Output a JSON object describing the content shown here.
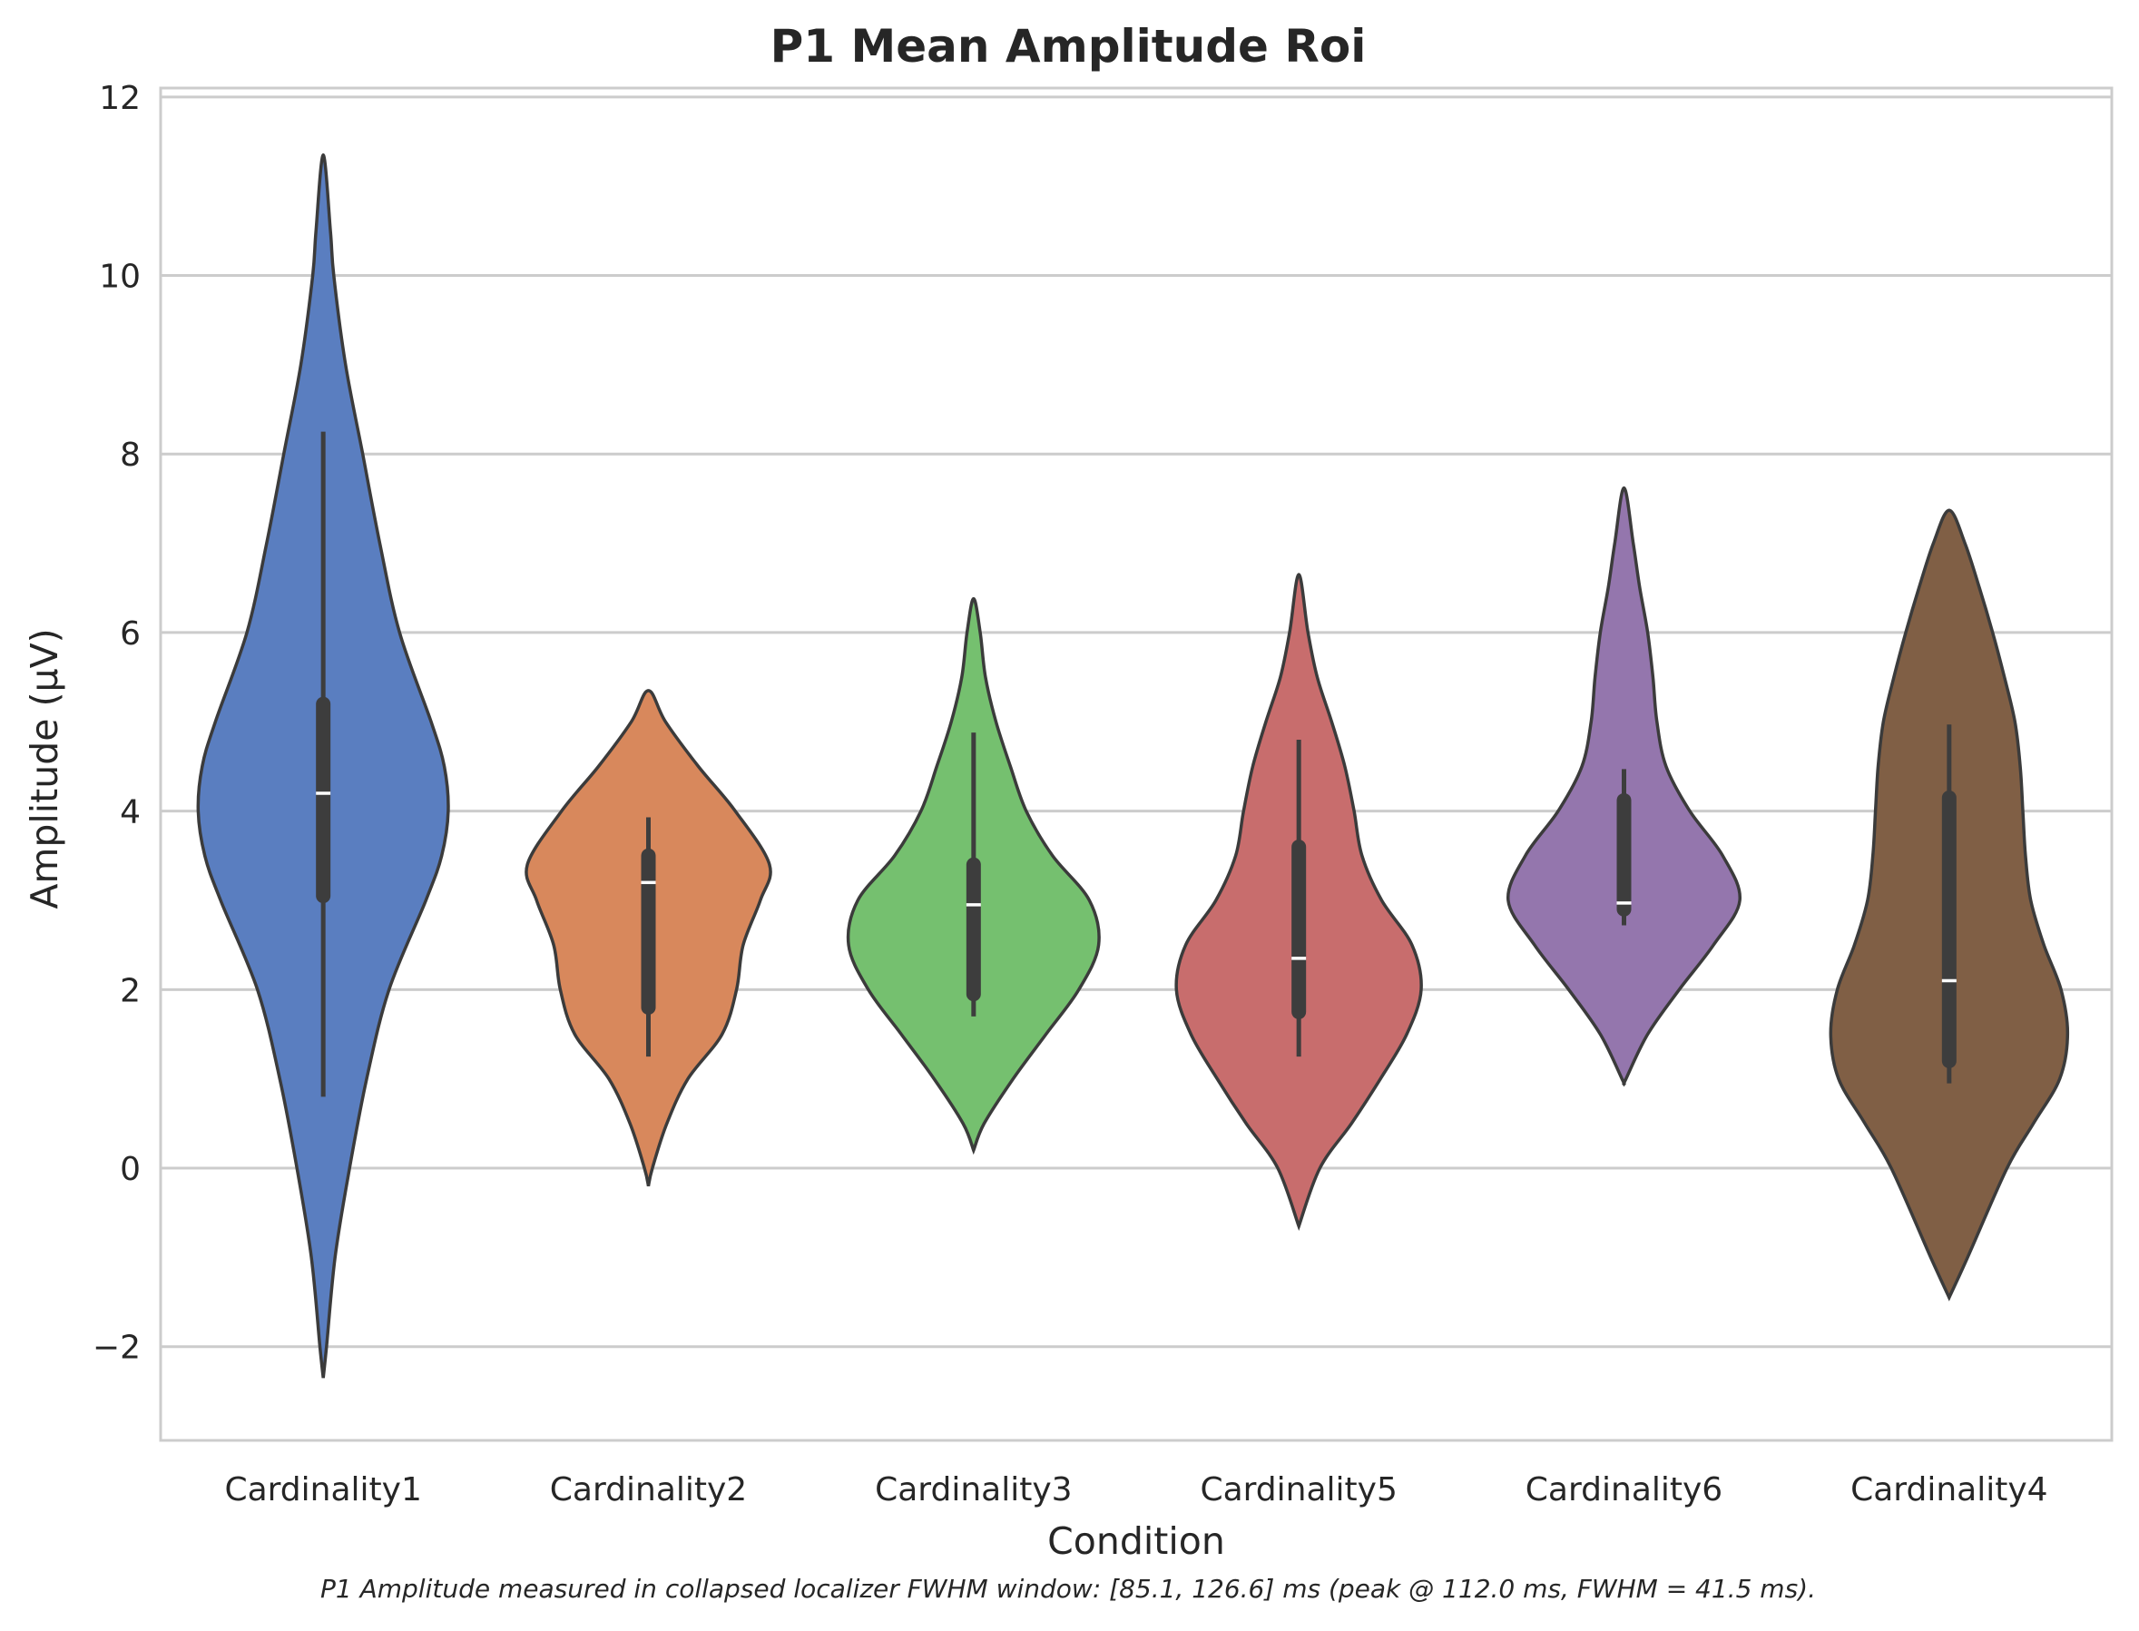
{
  "chart_data": {
    "type": "violin",
    "title": "P1 Mean Amplitude Roi",
    "xlabel": "Condition",
    "ylabel": "Amplitude (µV)",
    "caption": "P1 Amplitude measured in collapsed localizer FWHM window: [85.1, 126.6] ms (peak @ 112.0 ms, FWHM = 41.5 ms).",
    "ylim": [
      -3.05,
      12.1
    ],
    "yticks": [
      -2,
      0,
      2,
      4,
      6,
      8,
      10,
      12
    ],
    "ytick_labels": [
      "−2",
      "0",
      "2",
      "4",
      "6",
      "8",
      "10",
      "12"
    ],
    "grid": true,
    "categories": [
      "Cardinality1",
      "Cardinality2",
      "Cardinality3",
      "Cardinality5",
      "Cardinality6",
      "Cardinality4"
    ],
    "series": [
      {
        "category": "Cardinality1",
        "color": "#5a7ec0",
        "min": 0.8,
        "q1": 3.05,
        "median": 4.2,
        "q3": 5.2,
        "max": 8.25,
        "density": [
          [
            -2.35,
            0
          ],
          [
            -2.0,
            0.025
          ],
          [
            -1.0,
            0.09
          ],
          [
            0.0,
            0.2
          ],
          [
            1.0,
            0.33
          ],
          [
            2.0,
            0.5
          ],
          [
            3.0,
            0.78
          ],
          [
            3.5,
            0.9
          ],
          [
            4.0,
            0.95
          ],
          [
            4.5,
            0.92
          ],
          [
            5.0,
            0.82
          ],
          [
            6.0,
            0.58
          ],
          [
            7.0,
            0.43
          ],
          [
            8.0,
            0.3
          ],
          [
            9.0,
            0.17
          ],
          [
            10.0,
            0.08
          ],
          [
            10.5,
            0.055
          ],
          [
            11.35,
            0
          ]
        ]
      },
      {
        "category": "Cardinality2",
        "color": "#d8885c",
        "min": 1.25,
        "q1": 1.8,
        "median": 3.2,
        "q3": 3.5,
        "max": 3.93,
        "density": [
          [
            -0.2,
            0
          ],
          [
            0.0,
            0.03
          ],
          [
            0.5,
            0.14
          ],
          [
            1.0,
            0.3
          ],
          [
            1.5,
            0.56
          ],
          [
            2.0,
            0.67
          ],
          [
            2.5,
            0.72
          ],
          [
            3.0,
            0.85
          ],
          [
            3.4,
            0.92
          ],
          [
            4.0,
            0.66
          ],
          [
            4.5,
            0.38
          ],
          [
            5.0,
            0.13
          ],
          [
            5.35,
            0
          ]
        ]
      },
      {
        "category": "Cardinality3",
        "color": "#75c06f",
        "min": 1.7,
        "q1": 1.95,
        "median": 2.95,
        "q3": 3.4,
        "max": 4.88,
        "density": [
          [
            0.2,
            0
          ],
          [
            0.5,
            0.08
          ],
          [
            1.0,
            0.3
          ],
          [
            1.5,
            0.55
          ],
          [
            2.0,
            0.8
          ],
          [
            2.5,
            0.95
          ],
          [
            3.0,
            0.88
          ],
          [
            3.5,
            0.6
          ],
          [
            4.0,
            0.4
          ],
          [
            4.5,
            0.28
          ],
          [
            5.0,
            0.17
          ],
          [
            5.5,
            0.09
          ],
          [
            6.0,
            0.05
          ],
          [
            6.38,
            0
          ]
        ]
      },
      {
        "category": "Cardinality5",
        "color": "#c86d6d",
        "min": 1.25,
        "q1": 1.75,
        "median": 2.35,
        "q3": 3.6,
        "max": 4.8,
        "density": [
          [
            -0.65,
            0
          ],
          [
            0.0,
            0.16
          ],
          [
            0.5,
            0.4
          ],
          [
            1.0,
            0.62
          ],
          [
            1.5,
            0.82
          ],
          [
            2.0,
            0.93
          ],
          [
            2.5,
            0.86
          ],
          [
            3.0,
            0.63
          ],
          [
            3.5,
            0.48
          ],
          [
            4.0,
            0.42
          ],
          [
            4.5,
            0.35
          ],
          [
            5.0,
            0.25
          ],
          [
            5.5,
            0.14
          ],
          [
            6.0,
            0.07
          ],
          [
            6.65,
            0
          ]
        ]
      },
      {
        "category": "Cardinality6",
        "color": "#9476ad",
        "min": 2.72,
        "q1": 2.9,
        "median": 2.97,
        "q3": 4.12,
        "max": 4.47,
        "density": [
          [
            0.95,
            0
          ],
          [
            1.0,
            0.015
          ],
          [
            1.5,
            0.18
          ],
          [
            2.0,
            0.42
          ],
          [
            2.5,
            0.68
          ],
          [
            3.0,
            0.88
          ],
          [
            3.5,
            0.75
          ],
          [
            4.0,
            0.5
          ],
          [
            4.5,
            0.32
          ],
          [
            5.0,
            0.25
          ],
          [
            5.5,
            0.22
          ],
          [
            6.0,
            0.18
          ],
          [
            6.5,
            0.12
          ],
          [
            7.0,
            0.07
          ],
          [
            7.62,
            0
          ]
        ]
      },
      {
        "category": "Cardinality4",
        "color": "#805f45",
        "min": 0.95,
        "q1": 1.2,
        "median": 2.1,
        "q3": 4.15,
        "max": 4.97,
        "density": [
          [
            -1.45,
            0
          ],
          [
            -1.0,
            0.14
          ],
          [
            0.0,
            0.44
          ],
          [
            0.5,
            0.64
          ],
          [
            1.0,
            0.84
          ],
          [
            1.5,
            0.9
          ],
          [
            2.0,
            0.85
          ],
          [
            2.5,
            0.72
          ],
          [
            3.0,
            0.62
          ],
          [
            3.5,
            0.58
          ],
          [
            4.0,
            0.56
          ],
          [
            4.5,
            0.54
          ],
          [
            5.0,
            0.5
          ],
          [
            5.5,
            0.42
          ],
          [
            6.0,
            0.33
          ],
          [
            6.5,
            0.23
          ],
          [
            7.0,
            0.12
          ],
          [
            7.37,
            0
          ]
        ]
      }
    ]
  }
}
